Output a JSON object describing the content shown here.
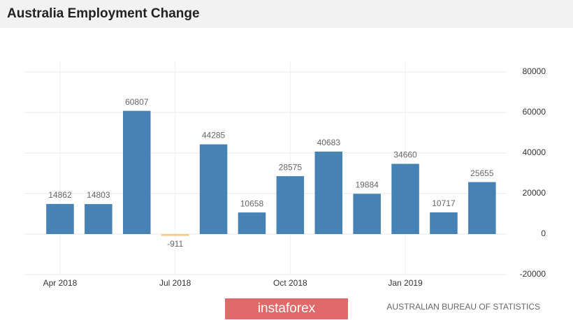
{
  "chart_data": {
    "type": "bar",
    "title": "Australia Employment Change",
    "categories": [
      "Apr 2018",
      null,
      null,
      "Jul 2018",
      null,
      null,
      "Oct 2018",
      null,
      null,
      "Jan 2019",
      null,
      null
    ],
    "values": [
      14862,
      14803,
      60807,
      -911,
      44285,
      10658,
      28575,
      40683,
      19884,
      34660,
      10717,
      25655
    ],
    "color": "#4682b4",
    "negative_color": "#f3c98c",
    "ylim": [
      -20000,
      80000
    ],
    "yticks": [
      -20000,
      0,
      20000,
      40000,
      60000,
      80000
    ],
    "grid": true,
    "source": "AUSTRALIAN BUREAU OF STATISTICS",
    "watermark": "instaforex"
  }
}
